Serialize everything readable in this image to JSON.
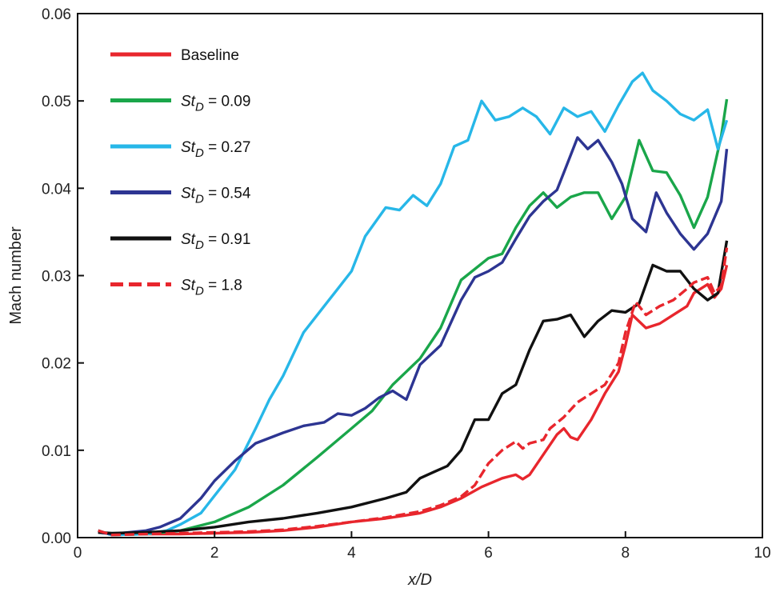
{
  "chart_data": {
    "type": "line",
    "title": "",
    "xlabel": "x/D",
    "ylabel": "Mach number",
    "xlim": [
      0,
      10
    ],
    "ylim": [
      0,
      0.06
    ],
    "x_ticks": [
      0,
      2,
      4,
      6,
      8,
      10
    ],
    "x_tick_labels": [
      "0",
      "2",
      "4",
      "6",
      "8",
      "10"
    ],
    "y_ticks": [
      0,
      0.01,
      0.02,
      0.03,
      0.04,
      0.05,
      0.06
    ],
    "y_tick_labels": [
      "0.00",
      "0.01",
      "0.02",
      "0.03",
      "0.04",
      "0.05",
      "0.06"
    ],
    "grid": false,
    "legend_position": "top-left",
    "series": [
      {
        "name": "Baseline",
        "label_main": "Baseline",
        "label_sub": "",
        "label_value": "",
        "color": "#e8262d",
        "dashed": false,
        "x": [
          0.3,
          0.5,
          1.0,
          1.5,
          2.0,
          2.5,
          3.0,
          3.5,
          4.0,
          4.5,
          5.0,
          5.3,
          5.6,
          5.9,
          6.2,
          6.4,
          6.5,
          6.6,
          6.8,
          7.0,
          7.1,
          7.2,
          7.3,
          7.5,
          7.7,
          7.9,
          8.0,
          8.1,
          8.3,
          8.5,
          8.7,
          8.9,
          9.0,
          9.2,
          9.3,
          9.4,
          9.48
        ],
        "y": [
          0.0008,
          0.0003,
          0.0004,
          0.0004,
          0.0005,
          0.0006,
          0.0008,
          0.0012,
          0.0018,
          0.0022,
          0.0028,
          0.0035,
          0.0045,
          0.0058,
          0.0068,
          0.0072,
          0.0067,
          0.0072,
          0.0095,
          0.0118,
          0.0125,
          0.0115,
          0.0112,
          0.0135,
          0.0165,
          0.019,
          0.022,
          0.0255,
          0.024,
          0.0245,
          0.0255,
          0.0265,
          0.028,
          0.029,
          0.0275,
          0.0285,
          0.0312
        ]
      },
      {
        "name": "St_D = 0.09",
        "label_main": "St",
        "label_sub": "D",
        "label_value": " = 0.09",
        "color": "#1aa64a",
        "dashed": false,
        "x": [
          0.3,
          0.5,
          1.0,
          1.5,
          2.0,
          2.5,
          3.0,
          3.5,
          4.0,
          4.3,
          4.6,
          5.0,
          5.3,
          5.6,
          6.0,
          6.2,
          6.4,
          6.6,
          6.8,
          7.0,
          7.2,
          7.4,
          7.6,
          7.8,
          8.0,
          8.2,
          8.4,
          8.6,
          8.8,
          9.0,
          9.2,
          9.4,
          9.48
        ],
        "y": [
          0.0008,
          0.0003,
          0.0004,
          0.0008,
          0.0018,
          0.0035,
          0.006,
          0.0092,
          0.0125,
          0.0145,
          0.0175,
          0.0205,
          0.024,
          0.0295,
          0.032,
          0.0325,
          0.0355,
          0.038,
          0.0395,
          0.0378,
          0.039,
          0.0395,
          0.0395,
          0.0365,
          0.039,
          0.0455,
          0.042,
          0.0418,
          0.0392,
          0.0355,
          0.039,
          0.046,
          0.0502
        ]
      },
      {
        "name": "St_D = 0.27",
        "label_main": "St",
        "label_sub": "D",
        "label_value": " = 0.27",
        "color": "#27b7e8",
        "dashed": false,
        "x": [
          0.3,
          0.5,
          1.0,
          1.3,
          1.5,
          1.8,
          2.0,
          2.3,
          2.6,
          2.8,
          3.0,
          3.3,
          3.6,
          3.8,
          4.0,
          4.2,
          4.5,
          4.7,
          4.9,
          5.1,
          5.3,
          5.5,
          5.7,
          5.9,
          6.1,
          6.3,
          6.5,
          6.7,
          6.9,
          7.1,
          7.3,
          7.5,
          7.7,
          7.9,
          8.1,
          8.25,
          8.4,
          8.6,
          8.8,
          9.0,
          9.2,
          9.35,
          9.48
        ],
        "y": [
          0.0008,
          0.0003,
          0.0004,
          0.0008,
          0.0015,
          0.0028,
          0.0048,
          0.0078,
          0.0125,
          0.0158,
          0.0185,
          0.0235,
          0.0265,
          0.0285,
          0.0305,
          0.0345,
          0.0378,
          0.0375,
          0.0392,
          0.038,
          0.0405,
          0.0448,
          0.0455,
          0.05,
          0.0478,
          0.0482,
          0.0492,
          0.0482,
          0.0462,
          0.0492,
          0.0482,
          0.0488,
          0.0465,
          0.0495,
          0.0522,
          0.0532,
          0.0512,
          0.05,
          0.0485,
          0.0478,
          0.049,
          0.0445,
          0.0478
        ]
      },
      {
        "name": "St_D = 0.54",
        "label_main": "St",
        "label_sub": "D",
        "label_value": " = 0.54",
        "color": "#2d3592",
        "dashed": false,
        "x": [
          0.3,
          0.5,
          1.0,
          1.2,
          1.5,
          1.8,
          2.0,
          2.3,
          2.6,
          3.0,
          3.3,
          3.6,
          3.8,
          4.0,
          4.2,
          4.4,
          4.6,
          4.8,
          5.0,
          5.3,
          5.6,
          5.8,
          6.0,
          6.2,
          6.4,
          6.6,
          6.8,
          7.0,
          7.1,
          7.3,
          7.45,
          7.6,
          7.8,
          7.95,
          8.1,
          8.3,
          8.45,
          8.6,
          8.8,
          9.0,
          9.2,
          9.4,
          9.48
        ],
        "y": [
          0.0006,
          0.0004,
          0.0008,
          0.0012,
          0.0022,
          0.0045,
          0.0065,
          0.0088,
          0.0108,
          0.012,
          0.0128,
          0.0132,
          0.0142,
          0.014,
          0.0148,
          0.016,
          0.0168,
          0.0158,
          0.0198,
          0.022,
          0.0272,
          0.0298,
          0.0305,
          0.0315,
          0.0342,
          0.0368,
          0.0385,
          0.0398,
          0.0418,
          0.0458,
          0.0445,
          0.0455,
          0.043,
          0.0405,
          0.0365,
          0.035,
          0.0395,
          0.0372,
          0.0348,
          0.033,
          0.0348,
          0.0385,
          0.0445
        ]
      },
      {
        "name": "St_D = 0.91",
        "label_main": "St",
        "label_sub": "D",
        "label_value": " = 0.91",
        "color": "#111111",
        "dashed": false,
        "x": [
          0.3,
          0.5,
          1.0,
          1.5,
          2.0,
          2.5,
          3.0,
          3.5,
          4.0,
          4.5,
          4.8,
          5.0,
          5.2,
          5.4,
          5.6,
          5.8,
          6.0,
          6.2,
          6.4,
          6.6,
          6.8,
          7.0,
          7.2,
          7.4,
          7.6,
          7.8,
          8.0,
          8.2,
          8.4,
          8.6,
          8.8,
          9.0,
          9.2,
          9.35,
          9.48
        ],
        "y": [
          0.0006,
          0.0005,
          0.0006,
          0.0008,
          0.0012,
          0.0018,
          0.0022,
          0.0028,
          0.0035,
          0.0045,
          0.0052,
          0.0068,
          0.0075,
          0.0082,
          0.01,
          0.0135,
          0.0135,
          0.0165,
          0.0175,
          0.0215,
          0.0248,
          0.025,
          0.0255,
          0.023,
          0.0248,
          0.026,
          0.0258,
          0.0268,
          0.0312,
          0.0305,
          0.0305,
          0.0285,
          0.0272,
          0.028,
          0.034
        ]
      },
      {
        "name": "St_D = 1.8",
        "label_main": "St",
        "label_sub": "D",
        "label_value": " = 1.8",
        "color": "#e8262d",
        "dashed": true,
        "x": [
          0.3,
          0.5,
          1.0,
          1.5,
          2.0,
          2.5,
          3.0,
          3.5,
          4.0,
          4.5,
          5.0,
          5.3,
          5.6,
          5.8,
          6.0,
          6.2,
          6.4,
          6.5,
          6.6,
          6.8,
          6.9,
          7.1,
          7.3,
          7.5,
          7.7,
          7.9,
          8.0,
          8.15,
          8.3,
          8.5,
          8.7,
          8.9,
          9.0,
          9.2,
          9.3,
          9.4,
          9.48
        ],
        "y": [
          0.0008,
          0.0003,
          0.0004,
          0.0005,
          0.0006,
          0.0007,
          0.0009,
          0.0013,
          0.0018,
          0.0023,
          0.003,
          0.0037,
          0.0047,
          0.006,
          0.0085,
          0.01,
          0.011,
          0.0102,
          0.0108,
          0.0112,
          0.0125,
          0.0138,
          0.0155,
          0.0165,
          0.0175,
          0.02,
          0.0235,
          0.027,
          0.0255,
          0.0265,
          0.0272,
          0.0285,
          0.0292,
          0.0298,
          0.028,
          0.0288,
          0.0332
        ]
      }
    ]
  }
}
